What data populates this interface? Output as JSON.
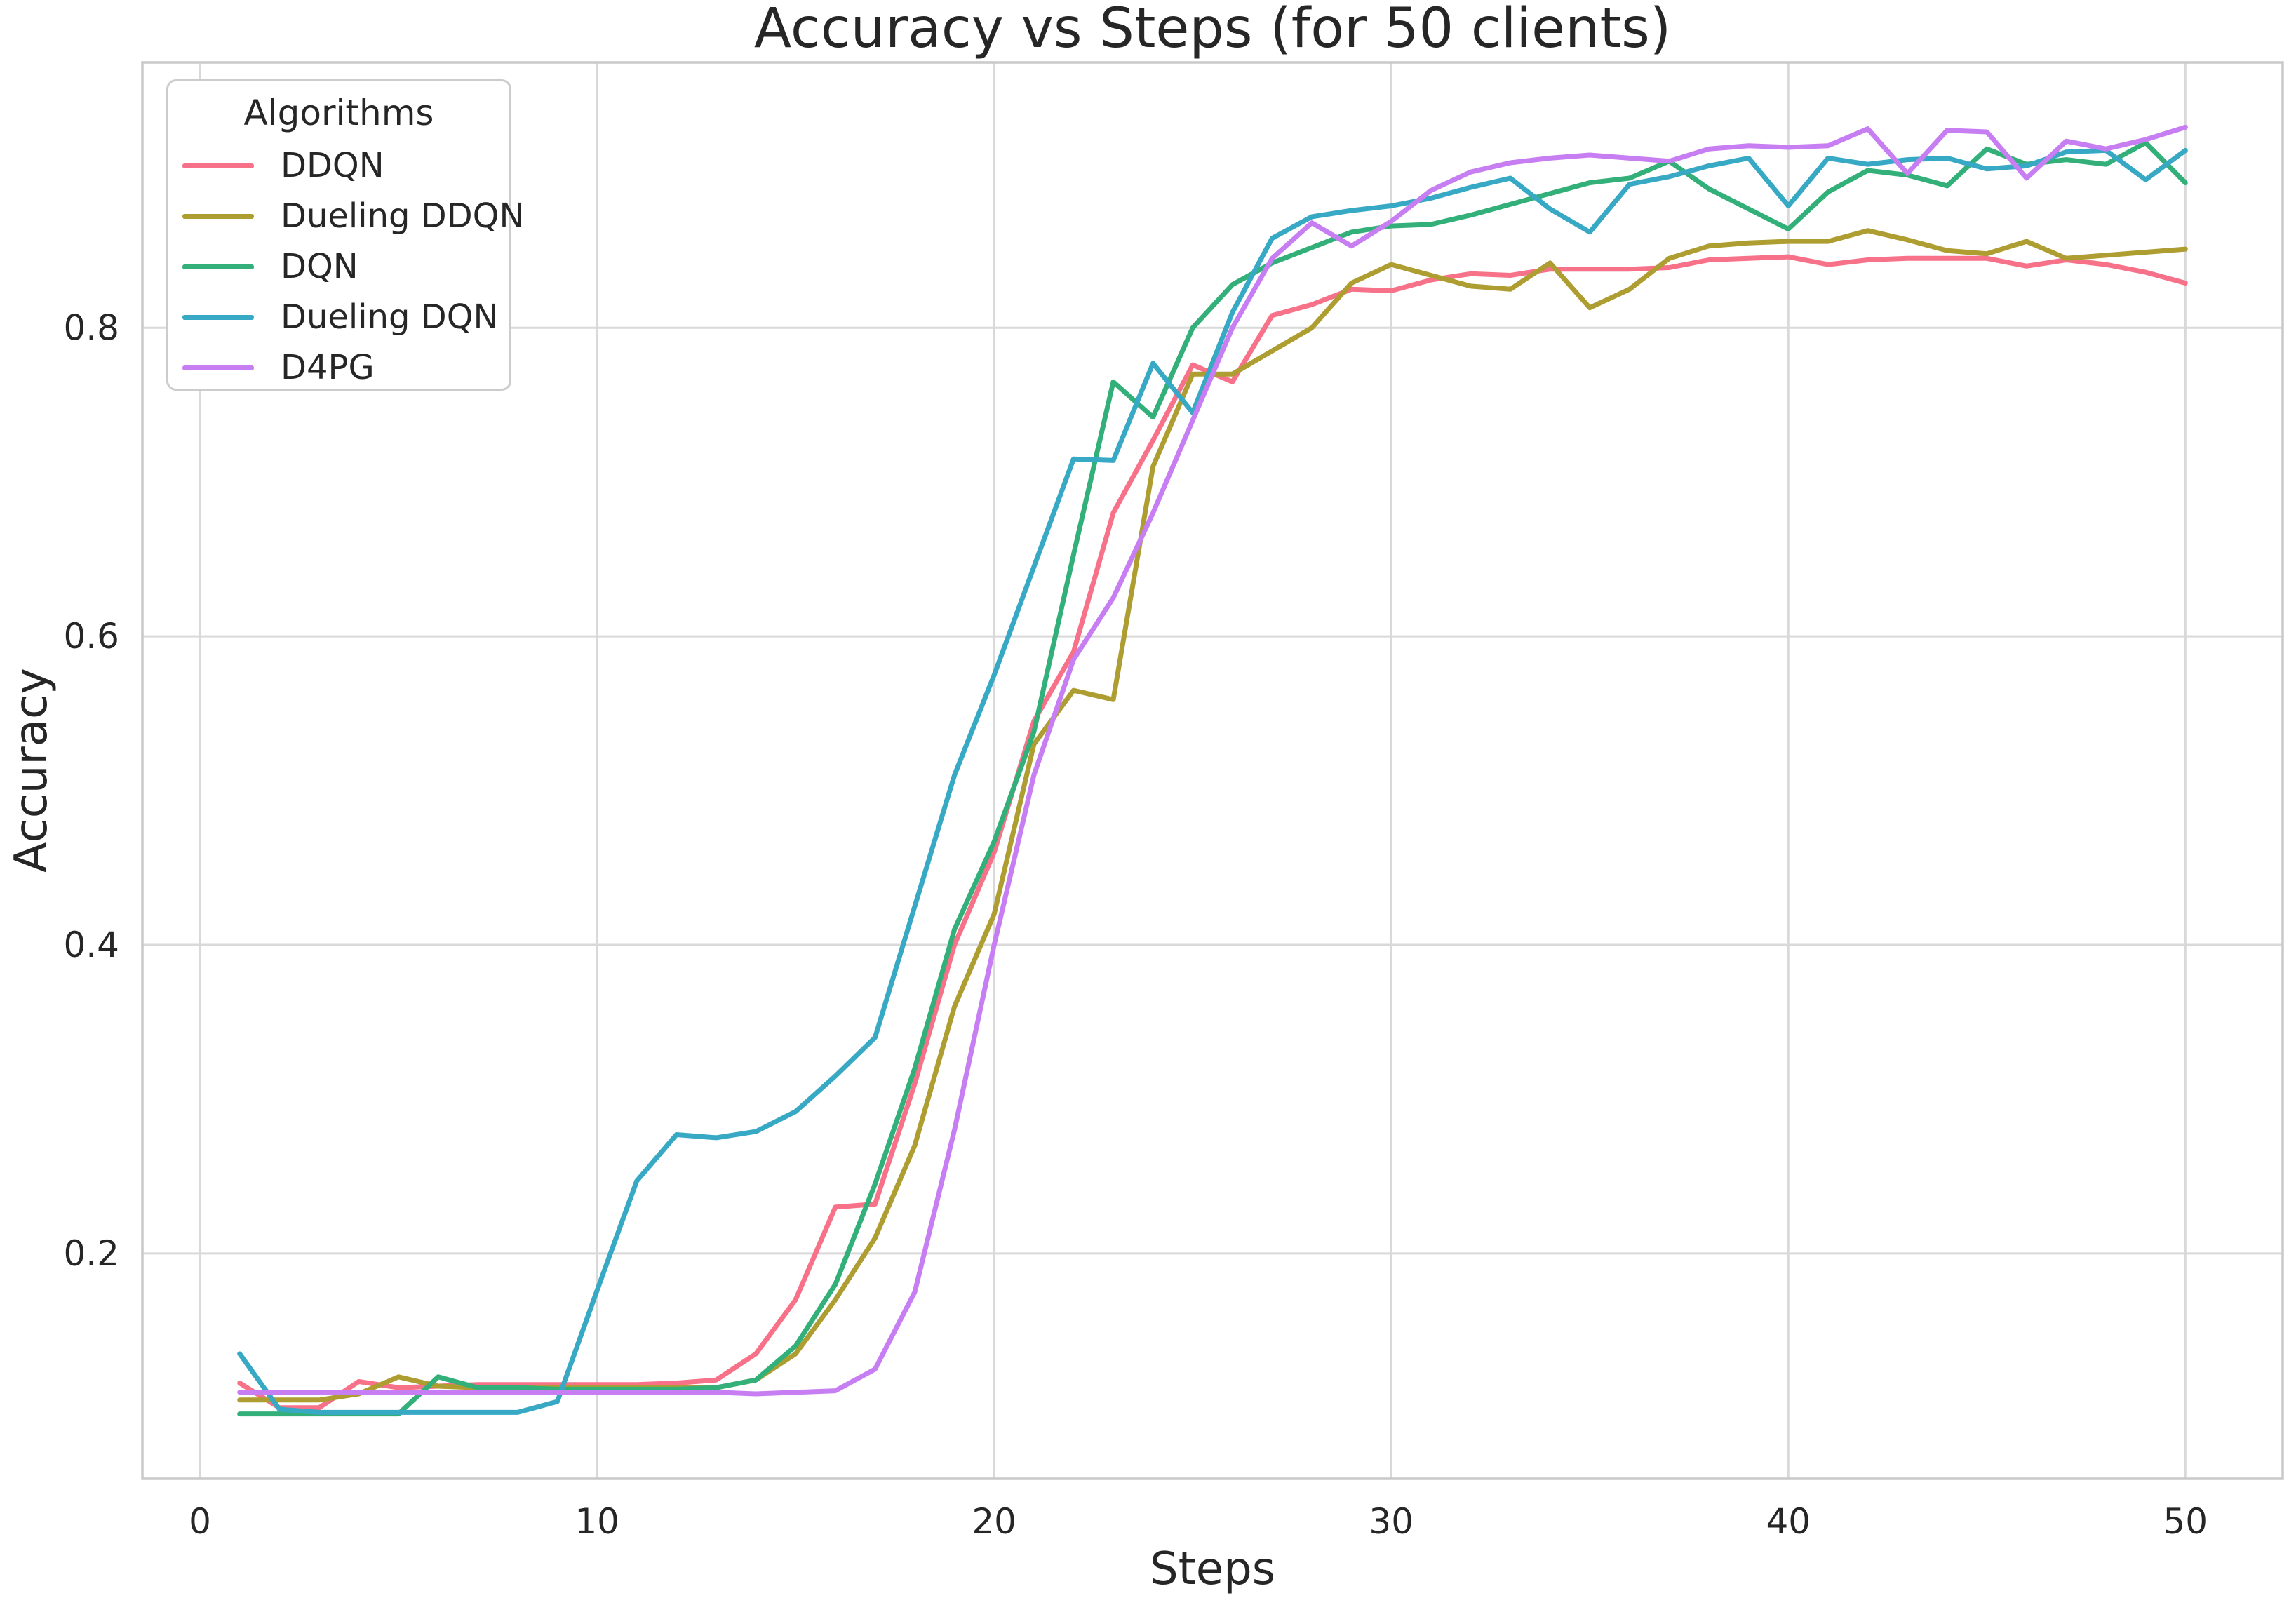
{
  "chart_data": {
    "type": "line",
    "title": "Accuracy vs Steps (for 50 clients)",
    "xlabel": "Steps",
    "ylabel": "Accuracy",
    "legend_title": "Algorithms",
    "legend_position": "upper left",
    "grid": true,
    "x_ticks": [
      0,
      10,
      20,
      30,
      40,
      50
    ],
    "y_ticks": [
      0.2,
      0.4,
      0.6,
      0.8
    ],
    "xlim": [
      -1.45,
      52.45
    ],
    "ylim": [
      0.054,
      0.972
    ],
    "x": [
      1,
      2,
      3,
      4,
      5,
      6,
      7,
      8,
      9,
      10,
      11,
      12,
      13,
      14,
      15,
      16,
      17,
      18,
      19,
      20,
      21,
      22,
      23,
      24,
      25,
      26,
      27,
      28,
      29,
      30,
      31,
      32,
      33,
      34,
      35,
      36,
      37,
      38,
      39,
      40,
      41,
      42,
      43,
      44,
      45,
      46,
      47,
      48,
      49,
      50
    ],
    "series": [
      {
        "name": "DDQN",
        "color": "#f77189",
        "values": [
          0.116,
          0.1,
          0.1,
          0.117,
          0.113,
          0.114,
          0.115,
          0.115,
          0.115,
          0.115,
          0.115,
          0.116,
          0.118,
          0.135,
          0.17,
          0.23,
          0.232,
          0.31,
          0.4,
          0.46,
          0.545,
          0.59,
          0.68,
          0.727,
          0.776,
          0.765,
          0.808,
          0.815,
          0.825,
          0.824,
          0.831,
          0.835,
          0.834,
          0.838,
          0.838,
          0.838,
          0.839,
          0.844,
          0.845,
          0.846,
          0.841,
          0.844,
          0.845,
          0.845,
          0.845,
          0.84,
          0.844,
          0.841,
          0.836,
          0.829
        ]
      },
      {
        "name": "Dueling DDQN",
        "color": "#ae9d31",
        "values": [
          0.105,
          0.105,
          0.105,
          0.109,
          0.12,
          0.114,
          0.113,
          0.113,
          0.113,
          0.113,
          0.113,
          0.113,
          0.113,
          0.118,
          0.135,
          0.17,
          0.21,
          0.27,
          0.36,
          0.42,
          0.53,
          0.565,
          0.559,
          0.71,
          0.77,
          0.77,
          0.785,
          0.8,
          0.829,
          0.841,
          0.834,
          0.827,
          0.825,
          0.842,
          0.813,
          0.825,
          0.845,
          0.853,
          0.855,
          0.856,
          0.856,
          0.863,
          0.857,
          0.85,
          0.848,
          0.856,
          0.845,
          0.847,
          0.849,
          0.851
        ]
      },
      {
        "name": "DQN",
        "color": "#33b07a",
        "values": [
          0.096,
          0.096,
          0.096,
          0.096,
          0.096,
          0.12,
          0.113,
          0.113,
          0.112,
          0.112,
          0.112,
          0.112,
          0.113,
          0.118,
          0.14,
          0.18,
          0.245,
          0.32,
          0.41,
          0.467,
          0.538,
          0.653,
          0.765,
          0.742,
          0.8,
          0.828,
          0.842,
          0.852,
          0.862,
          0.866,
          0.867,
          0.873,
          0.88,
          0.887,
          0.894,
          0.897,
          0.908,
          0.89,
          0.877,
          0.864,
          0.888,
          0.902,
          0.899,
          0.892,
          0.916,
          0.906,
          0.909,
          0.906,
          0.92,
          0.894
        ]
      },
      {
        "name": "Dueling DQN",
        "color": "#38a9c5",
        "values": [
          0.135,
          0.099,
          0.097,
          0.097,
          0.097,
          0.097,
          0.097,
          0.097,
          0.104,
          0.176,
          0.247,
          0.277,
          0.275,
          0.279,
          0.292,
          0.315,
          0.34,
          0.425,
          0.51,
          0.575,
          0.645,
          0.715,
          0.714,
          0.777,
          0.745,
          0.81,
          0.858,
          0.872,
          0.876,
          0.879,
          0.884,
          0.891,
          0.897,
          0.877,
          0.862,
          0.893,
          0.898,
          0.905,
          0.91,
          0.879,
          0.91,
          0.906,
          0.909,
          0.91,
          0.903,
          0.905,
          0.914,
          0.915,
          0.896,
          0.915
        ]
      },
      {
        "name": "D4PG",
        "color": "#c77ef2",
        "values": [
          0.11,
          0.11,
          0.11,
          0.11,
          0.11,
          0.11,
          0.11,
          0.11,
          0.11,
          0.11,
          0.11,
          0.11,
          0.11,
          0.109,
          0.11,
          0.111,
          0.125,
          0.175,
          0.28,
          0.4,
          0.51,
          0.585,
          0.625,
          0.68,
          0.74,
          0.8,
          0.845,
          0.868,
          0.853,
          0.869,
          0.889,
          0.901,
          0.907,
          0.91,
          0.912,
          0.91,
          0.908,
          0.916,
          0.918,
          0.917,
          0.918,
          0.929,
          0.9,
          0.928,
          0.927,
          0.897,
          0.921,
          0.916,
          0.922,
          0.93
        ]
      }
    ]
  }
}
